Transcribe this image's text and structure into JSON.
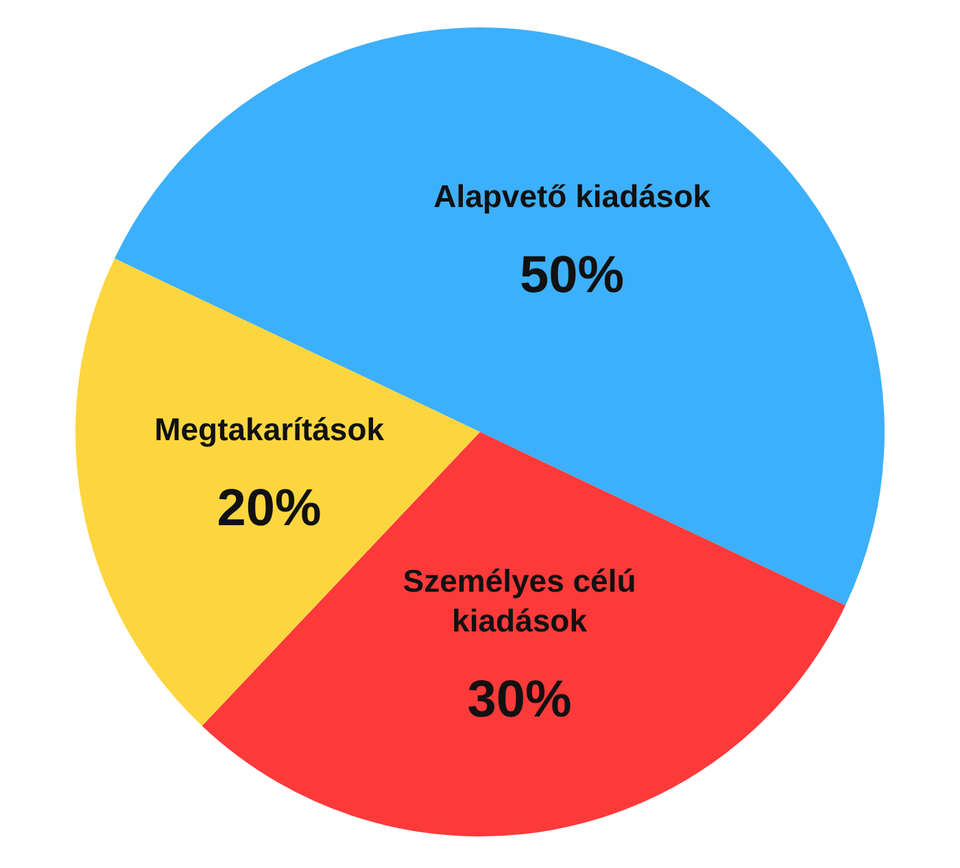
{
  "chart_data": {
    "type": "pie",
    "categories": [
      "Alapvető kiadások",
      "Személyes célú kiadások",
      "Megtakarítások"
    ],
    "values": [
      50,
      30,
      20
    ],
    "colors": [
      "#3db0fb",
      "#fd3a3a",
      "#fdd63f"
    ],
    "value_labels": [
      "50%",
      "30%",
      "20%"
    ]
  }
}
